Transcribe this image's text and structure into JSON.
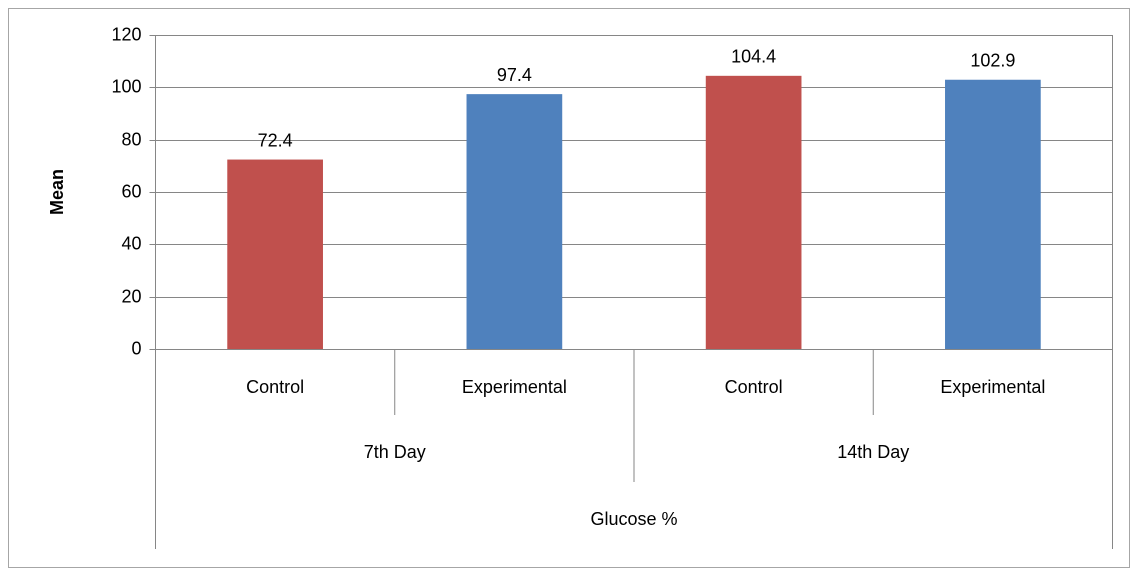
{
  "chart_data": {
    "type": "bar",
    "ylabel": "Mean",
    "categories": [
      "Control",
      "Experimental",
      "Control",
      "Experimental"
    ],
    "category_groups": [
      "7th Day",
      "14th Day"
    ],
    "outer_group": "Glucose %",
    "values": [
      72.4,
      97.4,
      104.4,
      102.9
    ],
    "colors": [
      "#c0504d",
      "#4f81bd",
      "#c0504d",
      "#4f81bd"
    ],
    "ylim": [
      0,
      120
    ],
    "yticks": [
      0,
      20,
      40,
      60,
      80,
      100,
      120
    ],
    "grid": true
  }
}
